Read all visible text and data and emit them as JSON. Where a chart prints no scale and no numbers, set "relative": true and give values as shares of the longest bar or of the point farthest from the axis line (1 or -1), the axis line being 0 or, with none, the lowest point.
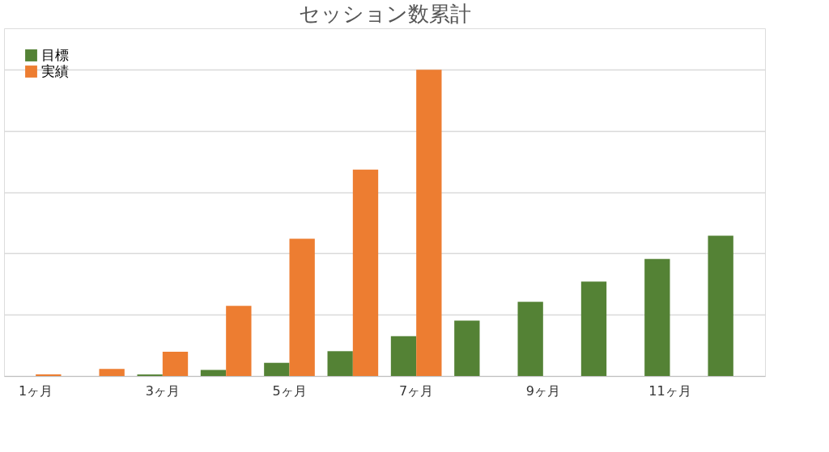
{
  "chart_data": {
    "type": "bar",
    "title": "セッション数累計",
    "relative": true,
    "grid": "y",
    "legend": "top left",
    "categories": [
      "1ヶ月",
      null,
      "3ヶ月",
      null,
      "5ヶ月",
      null,
      "7ヶ月",
      null,
      "9ヶ月",
      null,
      "11ヶ月",
      null
    ],
    "series": [
      {
        "name": "目標",
        "color": "#548235",
        "values": [
          0,
          0,
          0.005,
          0.02,
          0.043,
          0.081,
          0.13,
          0.181,
          0.242,
          0.308,
          0.382,
          0.458
        ]
      },
      {
        "name": "実績",
        "color": "#ed7d31",
        "values": [
          0.005,
          0.023,
          0.079,
          0.229,
          0.448,
          0.674,
          1,
          null,
          null,
          null,
          null,
          null
        ]
      }
    ]
  }
}
